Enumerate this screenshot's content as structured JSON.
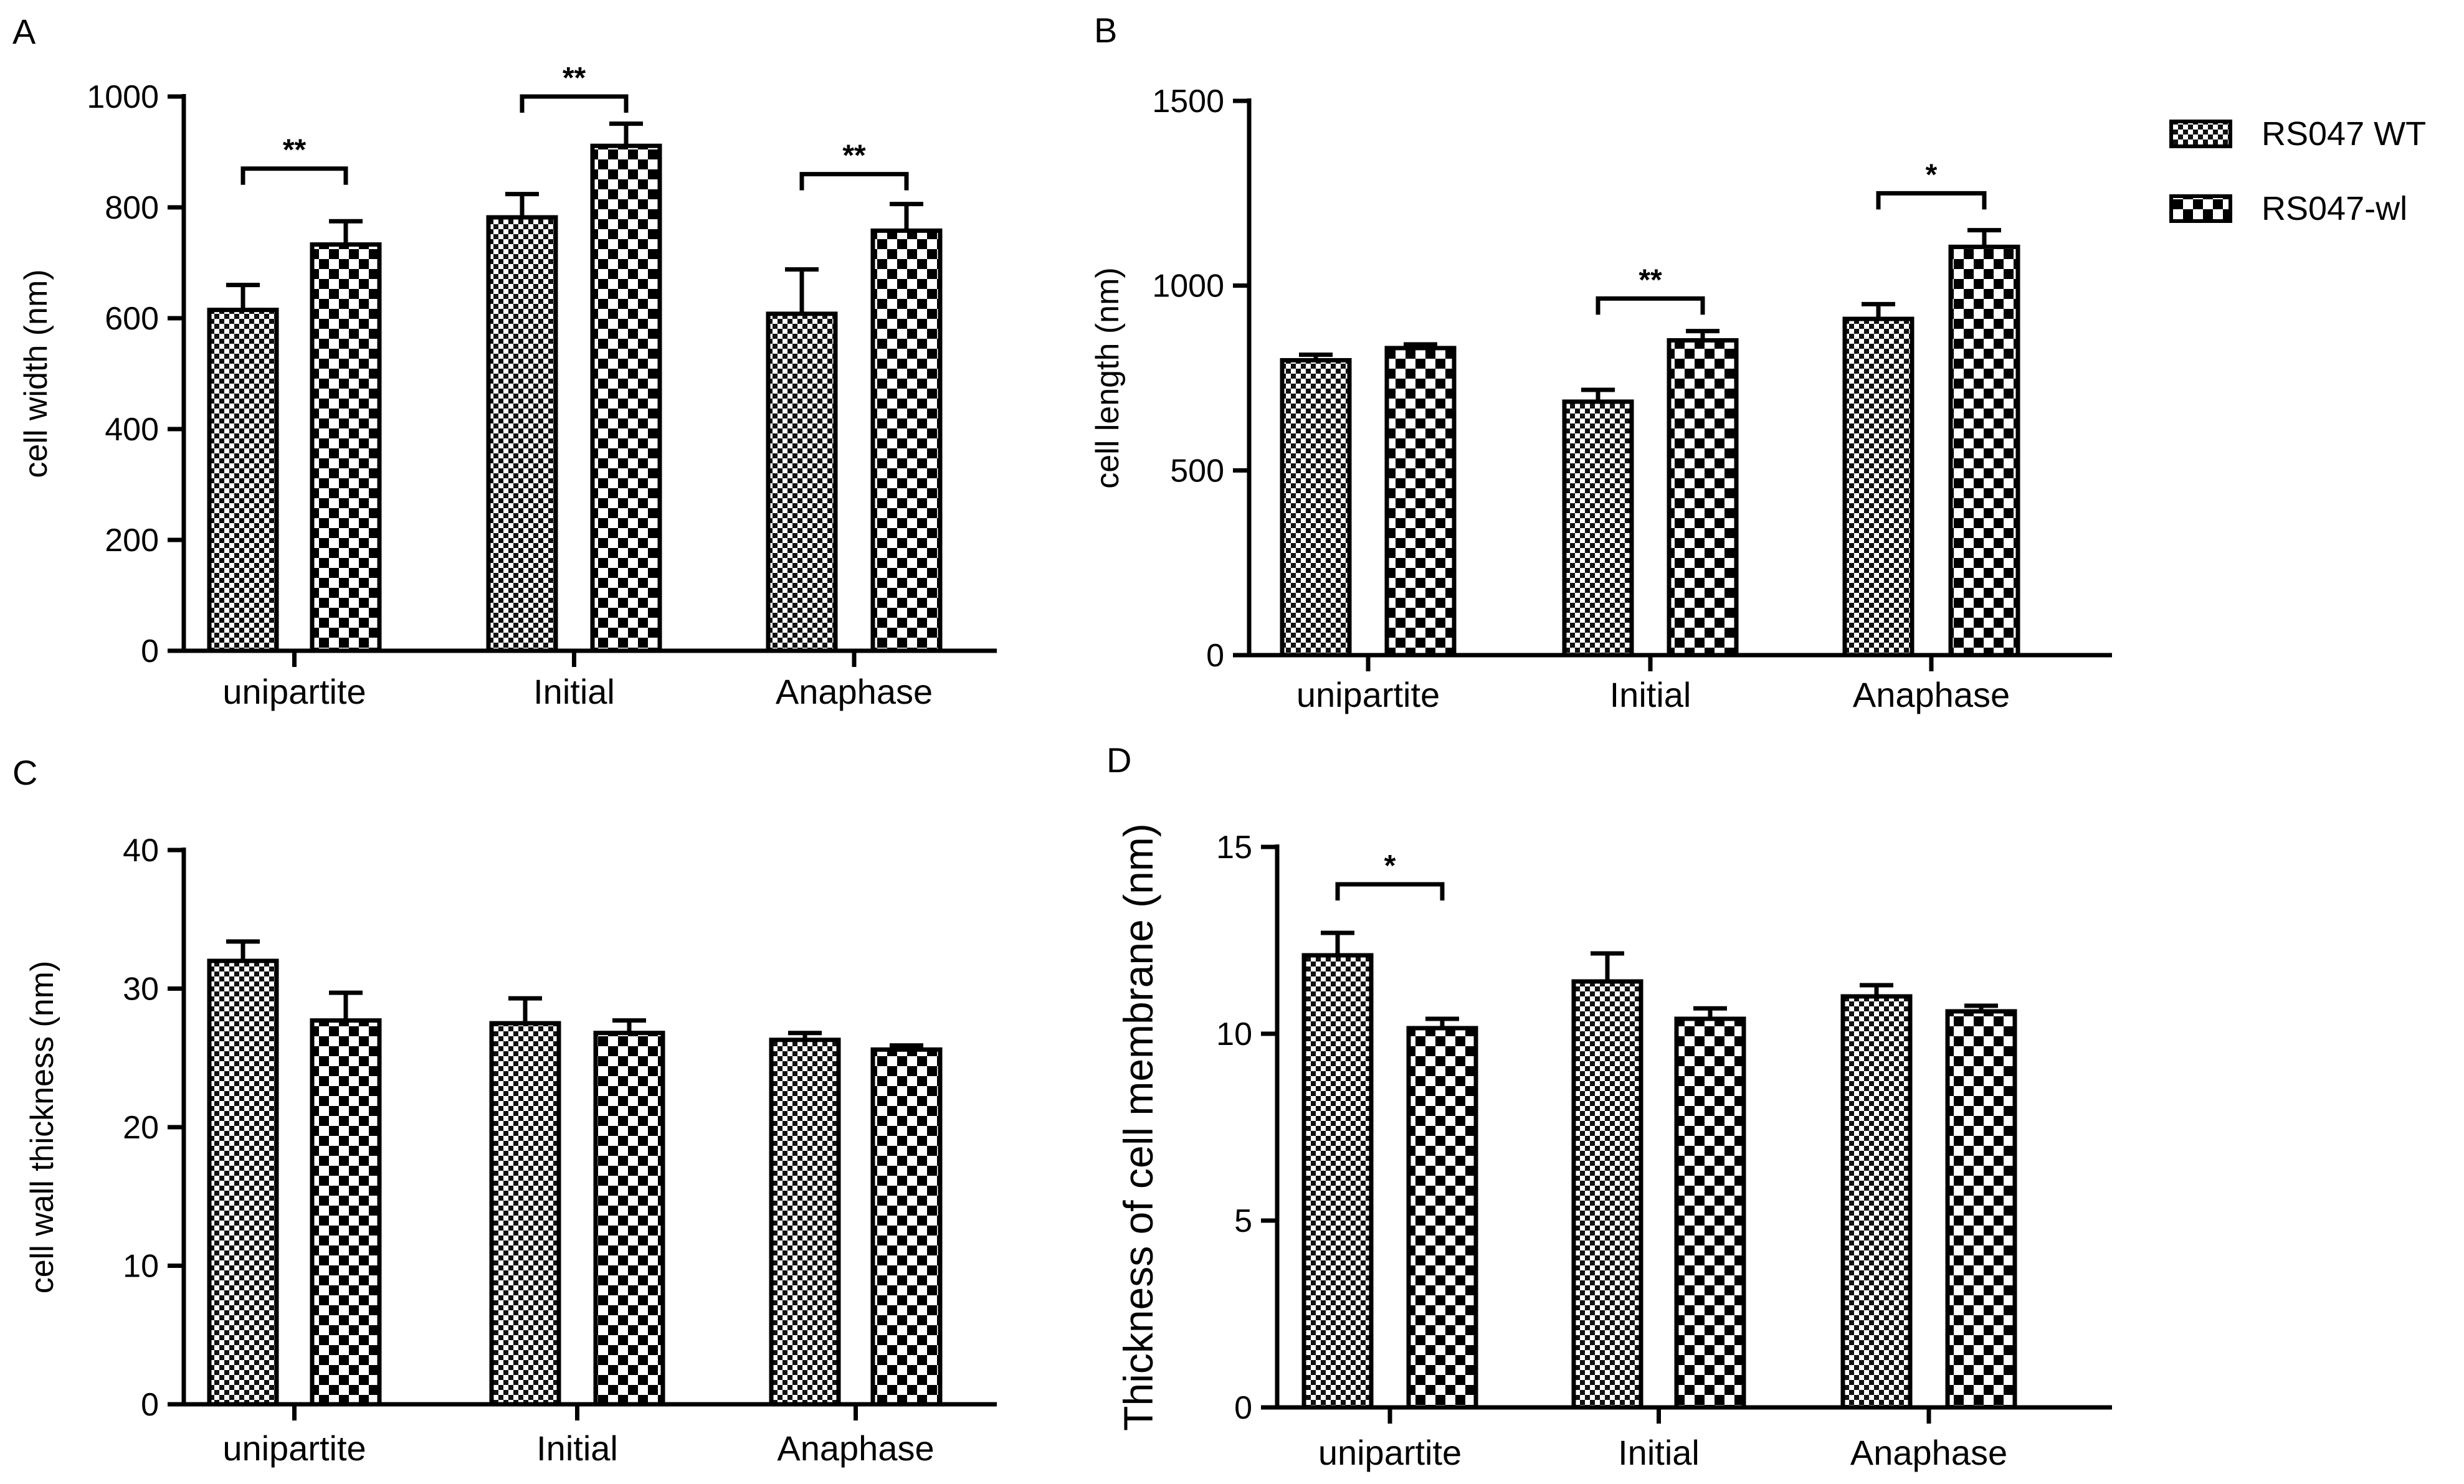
{
  "chart_data": [
    {
      "panel": "A",
      "type": "bar",
      "categories": [
        "unipartite",
        "Initial",
        "Anaphase"
      ],
      "ylabel": "cell width (nm)",
      "ylim": [
        0,
        1000
      ],
      "yticks": [
        0,
        200,
        400,
        600,
        800,
        1000
      ],
      "series": [
        {
          "name": "RS047 WT",
          "values": [
            615,
            782,
            608
          ],
          "errors": [
            45,
            42,
            80
          ]
        },
        {
          "name": "RS047-wl",
          "values": [
            733,
            911,
            758
          ],
          "errors": [
            42,
            40,
            48
          ]
        }
      ],
      "significance": [
        {
          "category": 0,
          "label": "**",
          "y": 870
        },
        {
          "category": 1,
          "label": "**",
          "y": 1000
        },
        {
          "category": 2,
          "label": "**",
          "y": 860
        }
      ]
    },
    {
      "panel": "B",
      "type": "bar",
      "categories": [
        "unipartite",
        "Initial",
        "Anaphase"
      ],
      "ylabel": "cell length (nm)",
      "ylim": [
        0,
        1500
      ],
      "yticks": [
        0,
        500,
        1000,
        1500
      ],
      "series": [
        {
          "name": "RS047 WT",
          "values": [
            798,
            686,
            910
          ],
          "errors": [
            15,
            32,
            40
          ]
        },
        {
          "name": "RS047-wl",
          "values": [
            831,
            852,
            1105
          ],
          "errors": [
            10,
            25,
            45
          ]
        }
      ],
      "significance": [
        {
          "category": 1,
          "label": "**",
          "y": 965
        },
        {
          "category": 2,
          "label": "*",
          "y": 1250
        }
      ]
    },
    {
      "panel": "C",
      "type": "bar",
      "categories": [
        "unipartite",
        "Initial",
        "Anaphase"
      ],
      "ylabel": "cell wall thickness (nm)",
      "ylim": [
        0,
        40
      ],
      "yticks": [
        0,
        10,
        20,
        30,
        40
      ],
      "series": [
        {
          "name": "RS047 WT",
          "values": [
            32,
            27.5,
            26.3
          ],
          "errors": [
            1.4,
            1.8,
            0.5
          ]
        },
        {
          "name": "RS047-wl",
          "values": [
            27.7,
            26.8,
            25.6
          ],
          "errors": [
            2.0,
            0.9,
            0.3
          ]
        }
      ],
      "significance": []
    },
    {
      "panel": "D",
      "type": "bar",
      "categories": [
        "unipartite",
        "Initial",
        "Anaphase"
      ],
      "ylabel": "Thickness of cell membrane (nm)",
      "ylim": [
        0,
        15
      ],
      "yticks": [
        0,
        5,
        10,
        15
      ],
      "series": [
        {
          "name": "RS047 WT",
          "values": [
            12.1,
            11.4,
            11.0
          ],
          "errors": [
            0.6,
            0.75,
            0.3
          ]
        },
        {
          "name": "RS047-wl",
          "values": [
            10.15,
            10.4,
            10.6
          ],
          "errors": [
            0.25,
            0.28,
            0.15
          ]
        }
      ],
      "significance": [
        {
          "category": 0,
          "label": "*",
          "y": 14.0
        }
      ]
    }
  ],
  "legend": {
    "placement": "top-right",
    "items": [
      {
        "label": "RS047 WT",
        "pattern": "fine-checker"
      },
      {
        "label": "RS047-wl",
        "pattern": "coarse-checker"
      }
    ]
  }
}
